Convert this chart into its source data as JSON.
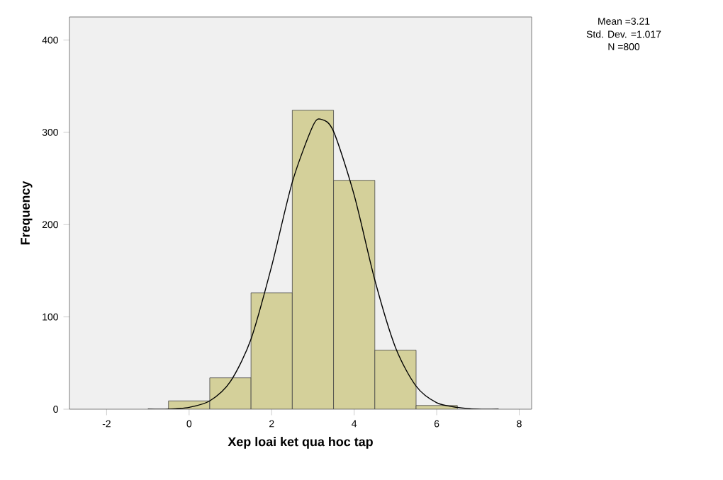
{
  "chart_data": {
    "type": "histogram",
    "xlabel": "Xep loai ket qua hoc tap",
    "ylabel": "Frequency",
    "xlim": [
      -2.9,
      8.3
    ],
    "ylim": [
      0,
      425
    ],
    "xticks": [
      -2,
      0,
      2,
      4,
      6,
      8
    ],
    "yticks": [
      0,
      100,
      200,
      300,
      400
    ],
    "grid": false,
    "series": [
      {
        "bins": [
          -0.5,
          0.5,
          1.5,
          2.5,
          3.5,
          4.5,
          5.5,
          6.5
        ],
        "values": [
          9,
          34,
          126,
          324,
          248,
          64,
          4
        ],
        "color": "#d4d09a"
      },
      {
        "type": "line",
        "color": "#000000",
        "x": [
          -1,
          -0.5,
          0,
          0.5,
          1,
          1.5,
          2,
          2.5,
          3,
          3.21,
          3.5,
          4,
          4.5,
          5,
          5.5,
          6,
          6.5,
          7,
          7.5
        ],
        "values": [
          0,
          0,
          2,
          9,
          30,
          76,
          155,
          246,
          307,
          314,
          301,
          232,
          140,
          67,
          25,
          7,
          2,
          0,
          0
        ]
      }
    ],
    "annotations": [
      "Mean =3.21",
      "Std. Dev. =1.017",
      "N =800"
    ]
  }
}
